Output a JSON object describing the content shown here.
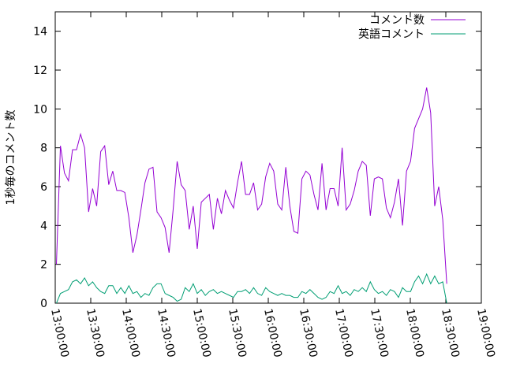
{
  "chart_data": {
    "type": "line",
    "ylabel": "1秒毎のコメント数",
    "x": [
      "13:01:00",
      "13:04:24",
      "13:07:48",
      "13:11:12",
      "13:14:36",
      "13:18:00",
      "13:21:24",
      "13:24:48",
      "13:28:12",
      "13:31:36",
      "13:35:00",
      "13:38:24",
      "13:41:48",
      "13:45:12",
      "13:48:36",
      "13:52:00",
      "13:55:24",
      "13:58:48",
      "14:02:12",
      "14:05:36",
      "14:09:00",
      "14:12:24",
      "14:15:48",
      "14:19:12",
      "14:22:36",
      "14:26:00",
      "14:29:24",
      "14:32:48",
      "14:36:12",
      "14:39:36",
      "14:43:00",
      "14:46:24",
      "14:49:48",
      "14:53:12",
      "14:56:36",
      "15:00:00",
      "15:03:24",
      "15:06:48",
      "15:10:12",
      "15:13:36",
      "15:17:00",
      "15:20:24",
      "15:23:48",
      "15:27:12",
      "15:30:36",
      "15:34:00",
      "15:37:24",
      "15:40:48",
      "15:44:12",
      "15:47:36",
      "15:51:00",
      "15:54:24",
      "15:57:48",
      "16:01:12",
      "16:04:36",
      "16:08:00",
      "16:11:24",
      "16:14:48",
      "16:18:12",
      "16:21:36",
      "16:25:00",
      "16:28:24",
      "16:31:48",
      "16:35:12",
      "16:38:36",
      "16:42:00",
      "16:45:24",
      "16:48:48",
      "16:52:12",
      "16:55:36",
      "16:59:00",
      "17:02:24",
      "17:05:48",
      "17:09:12",
      "17:12:36",
      "17:16:00",
      "17:19:24",
      "17:22:48",
      "17:26:12",
      "17:29:36",
      "17:33:00",
      "17:36:24",
      "17:39:48",
      "17:43:12",
      "17:46:36",
      "17:50:00",
      "17:53:24",
      "17:56:48",
      "18:00:12",
      "18:03:36",
      "18:07:00",
      "18:10:24",
      "18:13:48",
      "18:17:12",
      "18:20:36",
      "18:24:00",
      "18:27:24",
      "18:30:48"
    ],
    "series": [
      {
        "name": "コメント数",
        "color": "#9400d3",
        "values": [
          2.0,
          8.1,
          6.7,
          6.3,
          7.9,
          7.9,
          8.7,
          8.0,
          4.7,
          5.9,
          5.0,
          7.8,
          8.1,
          6.1,
          6.8,
          5.8,
          5.8,
          5.7,
          4.4,
          2.6,
          3.5,
          4.8,
          6.2,
          6.9,
          7.0,
          4.7,
          4.4,
          3.9,
          2.6,
          4.8,
          7.3,
          6.1,
          5.8,
          3.8,
          5.0,
          2.8,
          5.2,
          5.4,
          5.6,
          3.8,
          5.4,
          4.6,
          5.8,
          5.3,
          4.9,
          6.2,
          7.3,
          5.6,
          5.6,
          6.2,
          4.8,
          5.1,
          6.5,
          7.2,
          6.8,
          5.1,
          4.8,
          7.0,
          5.0,
          3.7,
          3.6,
          6.4,
          6.8,
          6.6,
          5.6,
          4.8,
          7.2,
          4.8,
          5.9,
          5.9,
          5.0,
          8.0,
          4.8,
          5.1,
          5.8,
          6.8,
          7.3,
          7.1,
          4.5,
          6.4,
          6.5,
          6.4,
          4.9,
          4.4,
          5.2,
          6.4,
          4.0,
          6.8,
          7.3,
          9.0,
          9.5,
          10.0,
          11.1,
          9.8,
          5.0,
          6.0,
          4.3,
          1.0
        ]
      },
      {
        "name": "英語コメント",
        "color": "#009e73",
        "values": [
          0,
          0.5,
          0.6,
          0.7,
          1.1,
          1.2,
          1.0,
          1.3,
          0.9,
          1.1,
          0.8,
          0.6,
          0.5,
          0.9,
          0.9,
          0.5,
          0.8,
          0.5,
          0.9,
          0.5,
          0.6,
          0.3,
          0.5,
          0.4,
          0.8,
          1.0,
          1.0,
          0.5,
          0.4,
          0.3,
          0.1,
          0.2,
          0.8,
          0.6,
          1.0,
          0.5,
          0.7,
          0.4,
          0.6,
          0.7,
          0.5,
          0.6,
          0.5,
          0.4,
          0.3,
          0.6,
          0.6,
          0.7,
          0.5,
          0.8,
          0.5,
          0.4,
          0.8,
          0.6,
          0.5,
          0.4,
          0.5,
          0.4,
          0.4,
          0.3,
          0.3,
          0.6,
          0.5,
          0.7,
          0.5,
          0.3,
          0.2,
          0.3,
          0.6,
          0.5,
          0.9,
          0.5,
          0.6,
          0.4,
          0.7,
          0.6,
          0.8,
          0.6,
          1.1,
          0.7,
          0.5,
          0.6,
          0.4,
          0.7,
          0.6,
          0.3,
          0.8,
          0.6,
          0.6,
          1.1,
          1.4,
          1.0,
          1.5,
          1.0,
          1.4,
          1.0,
          1.1,
          0.0
        ]
      }
    ],
    "xlim": [
      "13:00:00",
      "19:00:00"
    ],
    "xticks": [
      "13:00:00",
      "13:30:00",
      "14:00:00",
      "14:30:00",
      "15:00:00",
      "15:30:00",
      "16:00:00",
      "16:30:00",
      "17:00:00",
      "17:30:00",
      "18:00:00",
      "18:30:00",
      "19:00:00"
    ],
    "ylim": [
      0,
      15
    ],
    "yticks": [
      0,
      2,
      4,
      6,
      8,
      10,
      12,
      14
    ],
    "legend": "top-right"
  }
}
